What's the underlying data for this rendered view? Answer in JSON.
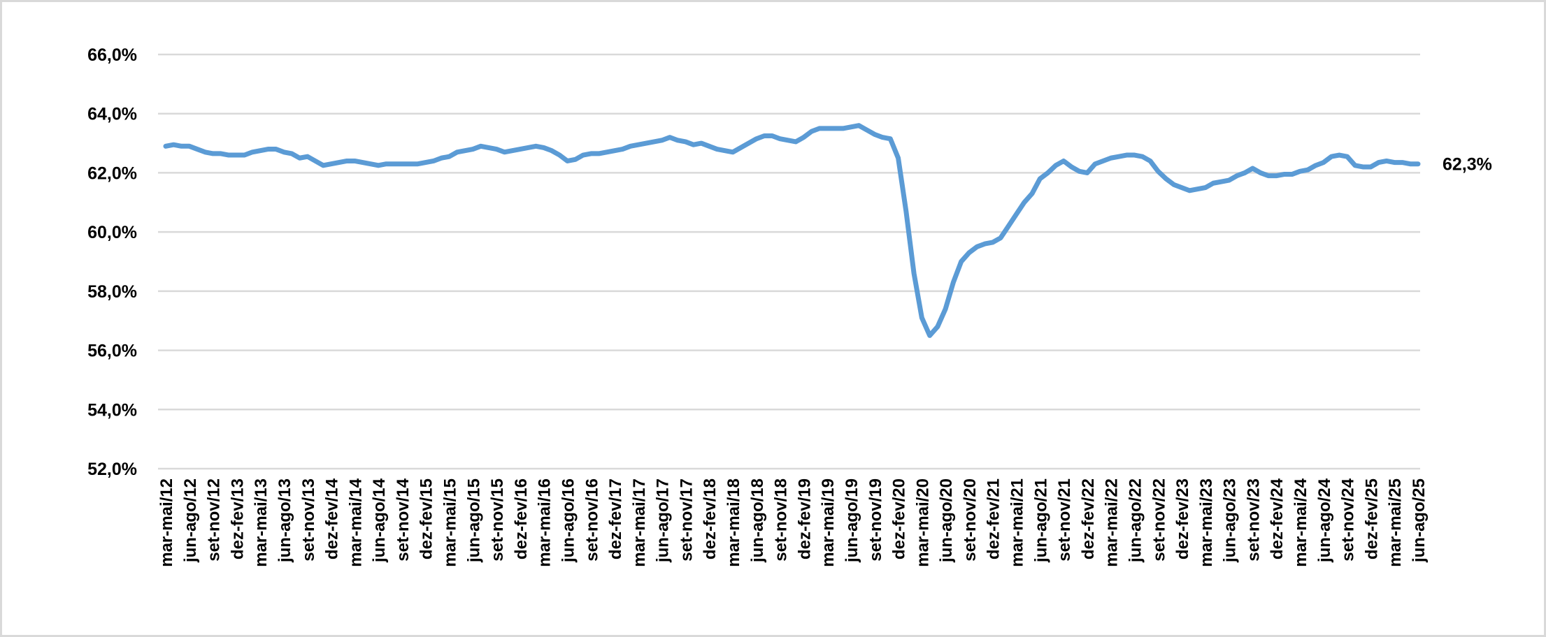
{
  "chart_data": {
    "type": "line",
    "categories": [
      "mar-mai/12",
      null,
      null,
      "jun-ago/12",
      null,
      null,
      "set-nov/12",
      null,
      null,
      "dez-fev/13",
      null,
      null,
      "mar-mai/13",
      null,
      null,
      "jun-ago/13",
      null,
      null,
      "set-nov/13",
      null,
      null,
      "dez-fev/14",
      null,
      null,
      "mar-mai/14",
      null,
      null,
      "jun-ago/14",
      null,
      null,
      "set-nov/14",
      null,
      null,
      "dez-fev/15",
      null,
      null,
      "mar-mai/15",
      null,
      null,
      "jun-ago/15",
      null,
      null,
      "set-nov/15",
      null,
      null,
      "dez-fev/16",
      null,
      null,
      "mar-mai/16",
      null,
      null,
      "jun-ago/16",
      null,
      null,
      "set-nov/16",
      null,
      null,
      "dez-fev/17",
      null,
      null,
      "mar-mai/17",
      null,
      null,
      "jun-ago/17",
      null,
      null,
      "set-nov/17",
      null,
      null,
      "dez-fev/18",
      null,
      null,
      "mar-mai/18",
      null,
      null,
      "jun-ago/18",
      null,
      null,
      "set-nov/18",
      null,
      null,
      "dez-fev/19",
      null,
      null,
      "mar-mai/19",
      null,
      null,
      "jun-ago/19",
      null,
      null,
      "set-nov/19",
      null,
      null,
      "dez-fev/20",
      null,
      null,
      "mar-mai/20",
      null,
      null,
      "jun-ago/20",
      null,
      null,
      "set-nov/20",
      null,
      null,
      "dez-fev/21",
      null,
      null,
      "mar-mai/21",
      null,
      null,
      "jun-ago/21",
      null,
      null,
      "set-nov/21",
      null,
      null,
      "dez-fev/22",
      null,
      null,
      "mar-mai/22",
      null,
      null,
      "jun-ago/22",
      null,
      null,
      "set-nov/22",
      null,
      null,
      "dez-fev/23",
      null,
      null,
      "mar-mai/23",
      null,
      null,
      "jun-ago/23",
      null,
      null,
      "set-nov/23",
      null,
      null,
      "dez-fev/24",
      null,
      null,
      "mar-mai/24",
      null,
      null,
      "jun-ago/24",
      null,
      null,
      "set-nov/24",
      null,
      null,
      "dez-fev/25",
      null,
      null,
      "mar-mai/25",
      null,
      null,
      "jun-ago/25"
    ],
    "values": [
      62.9,
      62.95,
      62.9,
      62.9,
      62.8,
      62.7,
      62.65,
      62.65,
      62.6,
      62.6,
      62.6,
      62.7,
      62.75,
      62.8,
      62.8,
      62.7,
      62.65,
      62.5,
      62.55,
      62.4,
      62.25,
      62.3,
      62.35,
      62.4,
      62.4,
      62.35,
      62.3,
      62.25,
      62.3,
      62.3,
      62.3,
      62.3,
      62.3,
      62.35,
      62.4,
      62.5,
      62.55,
      62.7,
      62.75,
      62.8,
      62.9,
      62.85,
      62.8,
      62.7,
      62.75,
      62.8,
      62.85,
      62.9,
      62.85,
      62.75,
      62.6,
      62.4,
      62.45,
      62.6,
      62.65,
      62.65,
      62.7,
      62.75,
      62.8,
      62.9,
      62.95,
      63.0,
      63.05,
      63.1,
      63.2,
      63.1,
      63.05,
      62.95,
      63.0,
      62.9,
      62.8,
      62.75,
      62.7,
      62.85,
      63.0,
      63.15,
      63.25,
      63.25,
      63.15,
      63.1,
      63.05,
      63.2,
      63.4,
      63.5,
      63.5,
      63.5,
      63.5,
      63.55,
      63.6,
      63.45,
      63.3,
      63.2,
      63.15,
      62.5,
      60.7,
      58.6,
      57.1,
      56.5,
      56.8,
      57.4,
      58.3,
      59.0,
      59.3,
      59.5,
      59.6,
      59.65,
      59.8,
      60.2,
      60.6,
      61.0,
      61.3,
      61.8,
      62.0,
      62.25,
      62.4,
      62.2,
      62.05,
      62.0,
      62.3,
      62.4,
      62.5,
      62.55,
      62.6,
      62.6,
      62.55,
      62.4,
      62.05,
      61.8,
      61.6,
      61.5,
      61.4,
      61.45,
      61.5,
      61.65,
      61.7,
      61.75,
      61.9,
      62.0,
      62.15,
      62.0,
      61.9,
      61.9,
      61.95,
      61.95,
      62.05,
      62.1,
      62.25,
      62.35,
      62.55,
      62.6,
      62.55,
      62.25,
      62.2,
      62.2,
      62.35,
      62.4,
      62.35,
      62.35,
      62.3,
      62.3
    ],
    "value_labels": [
      null,
      null,
      null,
      null,
      null,
      null,
      null,
      null,
      null,
      null,
      null,
      null,
      null,
      null,
      null,
      null,
      null,
      null,
      null,
      null,
      null,
      null,
      null,
      null,
      null,
      null,
      null,
      null,
      null,
      null,
      null,
      null,
      null,
      null,
      null,
      null,
      null,
      null,
      null,
      null,
      null,
      null,
      null,
      null,
      null,
      null,
      null,
      null,
      null,
      null,
      null,
      null,
      null,
      null,
      null,
      null,
      null,
      null,
      null,
      null,
      null,
      null,
      null,
      null,
      null,
      null,
      null,
      null,
      null,
      null,
      null,
      null,
      null,
      null,
      null,
      null,
      null,
      null,
      null,
      null,
      null,
      null,
      null,
      null,
      null,
      null,
      null,
      null,
      null,
      null,
      null,
      null,
      null,
      null,
      null,
      null,
      null,
      null,
      null,
      null,
      null,
      null,
      null,
      null,
      null,
      null,
      null,
      null,
      null,
      null,
      null,
      null,
      null,
      null,
      null,
      null,
      null,
      null,
      null,
      null,
      null,
      null,
      null,
      null,
      null,
      null,
      null,
      null,
      null,
      null,
      null,
      null,
      null,
      null,
      null,
      null,
      null,
      null,
      null,
      null,
      null,
      null,
      null,
      null,
      null,
      null,
      null,
      null,
      null,
      null,
      null,
      null,
      null,
      null,
      null,
      null,
      null,
      null,
      null,
      "62,3%"
    ],
    "color": "#5b9bd5",
    "ylim": [
      52,
      66
    ],
    "yticks": [
      {
        "value": 52,
        "label": "52,0%"
      },
      {
        "value": 54,
        "label": "54,0%"
      },
      {
        "value": 56,
        "label": "56,0%"
      },
      {
        "value": 58,
        "label": "58,0%"
      },
      {
        "value": 60,
        "label": "60,0%"
      },
      {
        "value": 62,
        "label": "62,0%"
      },
      {
        "value": 64,
        "label": "64,0%"
      },
      {
        "value": 66,
        "label": "66,0%"
      }
    ],
    "grid": true
  }
}
